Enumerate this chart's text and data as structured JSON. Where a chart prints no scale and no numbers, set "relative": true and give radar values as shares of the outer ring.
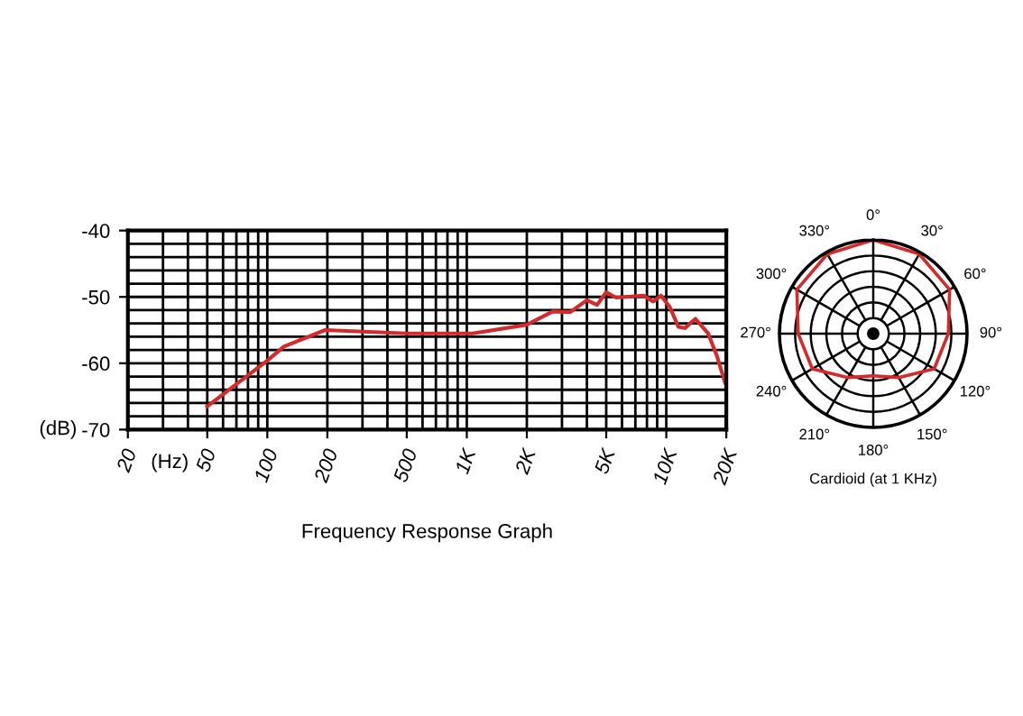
{
  "chart_data": [
    {
      "type": "line",
      "title": "Frequency Response Graph",
      "xlabel": "(Hz)",
      "ylabel": "(dB)",
      "log": "x",
      "x": [
        50,
        100,
        121,
        195,
        500,
        1070,
        2000,
        2700,
        3300,
        4000,
        4500,
        5000,
        5600,
        7700,
        8600,
        9400,
        10400,
        11500,
        12400,
        14000,
        16200,
        17900,
        19700
      ],
      "series": [
        {
          "color": "#d42a2a",
          "values": [
            -66.5,
            -59.6,
            -57.5,
            -55.0,
            -55.5,
            -55.5,
            -54.2,
            -52.2,
            -52.3,
            -50.5,
            -51.2,
            -49.3,
            -50.1,
            -49.8,
            -50.7,
            -49.8,
            -51.5,
            -54.5,
            -54.7,
            -53.3,
            -55.5,
            -58.8,
            -62.9
          ]
        }
      ],
      "xlim": [
        20,
        20000
      ],
      "ylim": [
        -70,
        -40
      ],
      "xticks": [
        20,
        50,
        100,
        200,
        500,
        {
          "value": 1000,
          "label": "1K"
        },
        {
          "value": 2000,
          "label": "2K"
        },
        {
          "value": 5000,
          "label": "5K"
        },
        {
          "value": 10000,
          "label": "10K"
        },
        {
          "value": 20000,
          "label": "20K"
        }
      ],
      "yticks": [
        -70,
        -60,
        -50,
        -40
      ],
      "grid": true,
      "legend": false
    },
    {
      "type": "radar",
      "title": "Cardioid (at 1 KHz)",
      "relative": true,
      "categories": [
        "0°",
        "30°",
        "60°",
        "90°",
        "120°",
        "150°",
        "180°",
        "210°",
        "240°",
        "270°",
        "300°",
        "330°"
      ],
      "series": [
        {
          "color": "#d42a2a",
          "values": [
            1.0,
            0.98,
            0.94,
            0.8,
            0.75,
            0.54,
            0.45,
            0.54,
            0.75,
            0.8,
            0.94,
            0.98
          ]
        }
      ],
      "grid": true,
      "legend": false
    }
  ]
}
